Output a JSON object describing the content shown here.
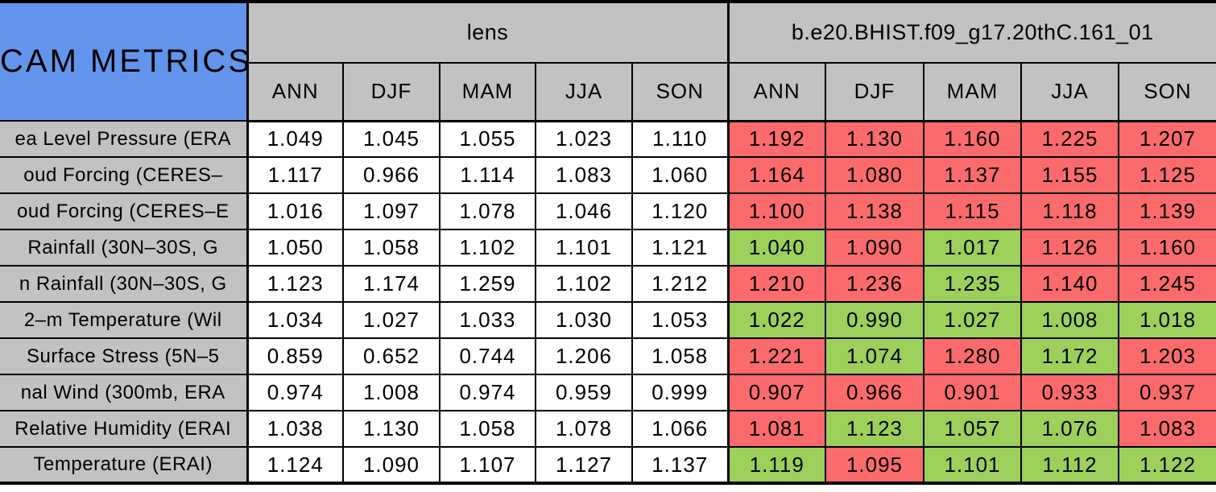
{
  "chart_data": {
    "type": "table",
    "title": "CAM METRICS",
    "column_groups": [
      "lens",
      "b.e20.BHIST.f09_g17.20thC.161_01"
    ],
    "seasons": [
      "ANN",
      "DJF",
      "MAM",
      "JJA",
      "SON"
    ],
    "legend_note_colors": {
      "red": "#FB6B6B",
      "green": "#9CD05A",
      "gray": "#C2C2C2",
      "blue": "#6495ED",
      "white": "#FFFFFF",
      "border": "#000000"
    },
    "rows": [
      {
        "label": "ea Level Pressure (ERA",
        "lens": [
          "1.049",
          "1.045",
          "1.055",
          "1.023",
          "1.110"
        ],
        "case": [
          "1.192",
          "1.130",
          "1.160",
          "1.225",
          "1.207"
        ],
        "case_colors": [
          "red",
          "red",
          "red",
          "red",
          "red"
        ]
      },
      {
        "label": "oud Forcing (CERES–",
        "lens": [
          "1.117",
          "0.966",
          "1.114",
          "1.083",
          "1.060"
        ],
        "case": [
          "1.164",
          "1.080",
          "1.137",
          "1.155",
          "1.125"
        ],
        "case_colors": [
          "red",
          "red",
          "red",
          "red",
          "red"
        ]
      },
      {
        "label": "oud Forcing (CERES–E",
        "lens": [
          "1.016",
          "1.097",
          "1.078",
          "1.046",
          "1.120"
        ],
        "case": [
          "1.100",
          "1.138",
          "1.115",
          "1.118",
          "1.139"
        ],
        "case_colors": [
          "red",
          "red",
          "red",
          "red",
          "red"
        ]
      },
      {
        "label": "Rainfall (30N–30S, G",
        "lens": [
          "1.050",
          "1.058",
          "1.102",
          "1.101",
          "1.121"
        ],
        "case": [
          "1.040",
          "1.090",
          "1.017",
          "1.126",
          "1.160"
        ],
        "case_colors": [
          "green",
          "red",
          "green",
          "red",
          "red"
        ]
      },
      {
        "label": "n Rainfall (30N–30S, G",
        "lens": [
          "1.123",
          "1.174",
          "1.259",
          "1.102",
          "1.212"
        ],
        "case": [
          "1.210",
          "1.236",
          "1.235",
          "1.140",
          "1.245"
        ],
        "case_colors": [
          "red",
          "red",
          "green",
          "red",
          "red"
        ]
      },
      {
        "label": "2–m Temperature (Wil",
        "lens": [
          "1.034",
          "1.027",
          "1.033",
          "1.030",
          "1.053"
        ],
        "case": [
          "1.022",
          "0.990",
          "1.027",
          "1.008",
          "1.018"
        ],
        "case_colors": [
          "green",
          "green",
          "green",
          "green",
          "green"
        ]
      },
      {
        "label": "Surface Stress (5N–5",
        "lens": [
          "0.859",
          "0.652",
          "0.744",
          "1.206",
          "1.058"
        ],
        "case": [
          "1.221",
          "1.074",
          "1.280",
          "1.172",
          "1.203"
        ],
        "case_colors": [
          "red",
          "green",
          "red",
          "green",
          "red"
        ]
      },
      {
        "label": "nal Wind (300mb, ERA",
        "lens": [
          "0.974",
          "1.008",
          "0.974",
          "0.959",
          "0.999"
        ],
        "case": [
          "0.907",
          "0.966",
          "0.901",
          "0.933",
          "0.937"
        ],
        "case_colors": [
          "red",
          "red",
          "red",
          "red",
          "red"
        ]
      },
      {
        "label": "Relative Humidity (ERAI",
        "lens": [
          "1.038",
          "1.130",
          "1.058",
          "1.078",
          "1.066"
        ],
        "case": [
          "1.081",
          "1.123",
          "1.057",
          "1.076",
          "1.083"
        ],
        "case_colors": [
          "red",
          "green",
          "green",
          "green",
          "red"
        ]
      },
      {
        "label": "Temperature (ERAI)",
        "lens": [
          "1.124",
          "1.090",
          "1.107",
          "1.127",
          "1.137"
        ],
        "case": [
          "1.119",
          "1.095",
          "1.101",
          "1.112",
          "1.122"
        ],
        "case_colors": [
          "green",
          "red",
          "green",
          "green",
          "green"
        ]
      }
    ]
  }
}
